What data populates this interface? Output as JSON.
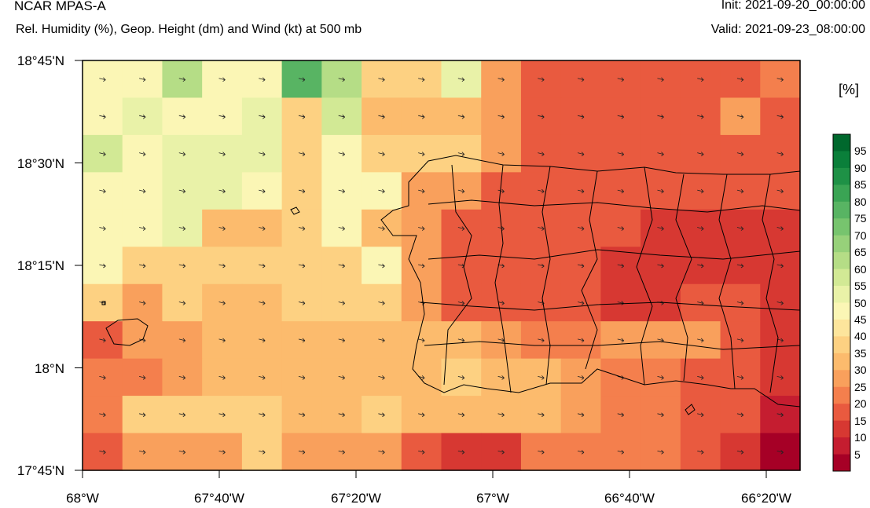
{
  "header": {
    "model": "NCAR MPAS-A",
    "field": "Rel. Humidity (%), Geop. Height (dm) and Wind (kt) at 500 mb",
    "init": "Init: 2021-09-20_00:00:00",
    "valid": "Valid: 2021-09-23_08:00:00"
  },
  "axes": {
    "lat_ticks": [
      "18°45'N",
      "18°30'N",
      "18°15'N",
      "18°N",
      "17°45'N"
    ],
    "lon_ticks": [
      "68°W",
      "67°40'W",
      "67°20'W",
      "67°W",
      "66°40'W",
      "66°20'W"
    ]
  },
  "colorbar": {
    "unit": "[%]",
    "labels": [
      "95",
      "90",
      "85",
      "80",
      "75",
      "70",
      "65",
      "60",
      "55",
      "50",
      "45",
      "40",
      "35",
      "30",
      "25",
      "20",
      "15",
      "10",
      "5"
    ],
    "colors": [
      "#00682d",
      "#0a7f3a",
      "#1e9146",
      "#3aa454",
      "#58b463",
      "#77c46e",
      "#97d17a",
      "#b5dd86",
      "#d2e995",
      "#e9f2a8",
      "#fbf6b5",
      "#fde59c",
      "#fdd182",
      "#fcbb6d",
      "#f9a05c",
      "#f47f4d",
      "#e95a3f",
      "#d73832",
      "#c51d30",
      "#a60026"
    ]
  },
  "grid_rh": [
    [
      48,
      48,
      60,
      48,
      48,
      78,
      63,
      35,
      35,
      50,
      28,
      18,
      18,
      18,
      18,
      18,
      18,
      20
    ],
    [
      45,
      53,
      46,
      47,
      53,
      38,
      55,
      34,
      33,
      33,
      28,
      18,
      18,
      18,
      18,
      15,
      26,
      18
    ],
    [
      56,
      49,
      50,
      53,
      53,
      37,
      47,
      36,
      36,
      36,
      28,
      18,
      18,
      18,
      18,
      18,
      18,
      18
    ],
    [
      48,
      49,
      54,
      53,
      48,
      37,
      46,
      46,
      26,
      26,
      18,
      18,
      18,
      18,
      18,
      18,
      18,
      15
    ],
    [
      48,
      49,
      54,
      34,
      31,
      36,
      46,
      34,
      26,
      18,
      18,
      18,
      18,
      18,
      14,
      14,
      14,
      12
    ],
    [
      48,
      38,
      38,
      35,
      35,
      37,
      36,
      48,
      26,
      18,
      18,
      18,
      18,
      12,
      10,
      14,
      14,
      10
    ],
    [
      35,
      27,
      35,
      33,
      33,
      38,
      36,
      38,
      28,
      18,
      18,
      18,
      18,
      12,
      14,
      18,
      18,
      14
    ],
    [
      18,
      25,
      25,
      32,
      33,
      34,
      33,
      33,
      30,
      30,
      29,
      20,
      24,
      26,
      26,
      26,
      18,
      14
    ],
    [
      24,
      24,
      28,
      33,
      33,
      33,
      33,
      33,
      34,
      35,
      32,
      33,
      26,
      20,
      20,
      18,
      16,
      12
    ],
    [
      20,
      35,
      35,
      35,
      35,
      33,
      33,
      38,
      33,
      34,
      33,
      33,
      26,
      20,
      20,
      18,
      18,
      8
    ],
    [
      16,
      25,
      25,
      29,
      35,
      26,
      26,
      26,
      18,
      11,
      12,
      22,
      24,
      20,
      20,
      15,
      13,
      4
    ]
  ]
}
